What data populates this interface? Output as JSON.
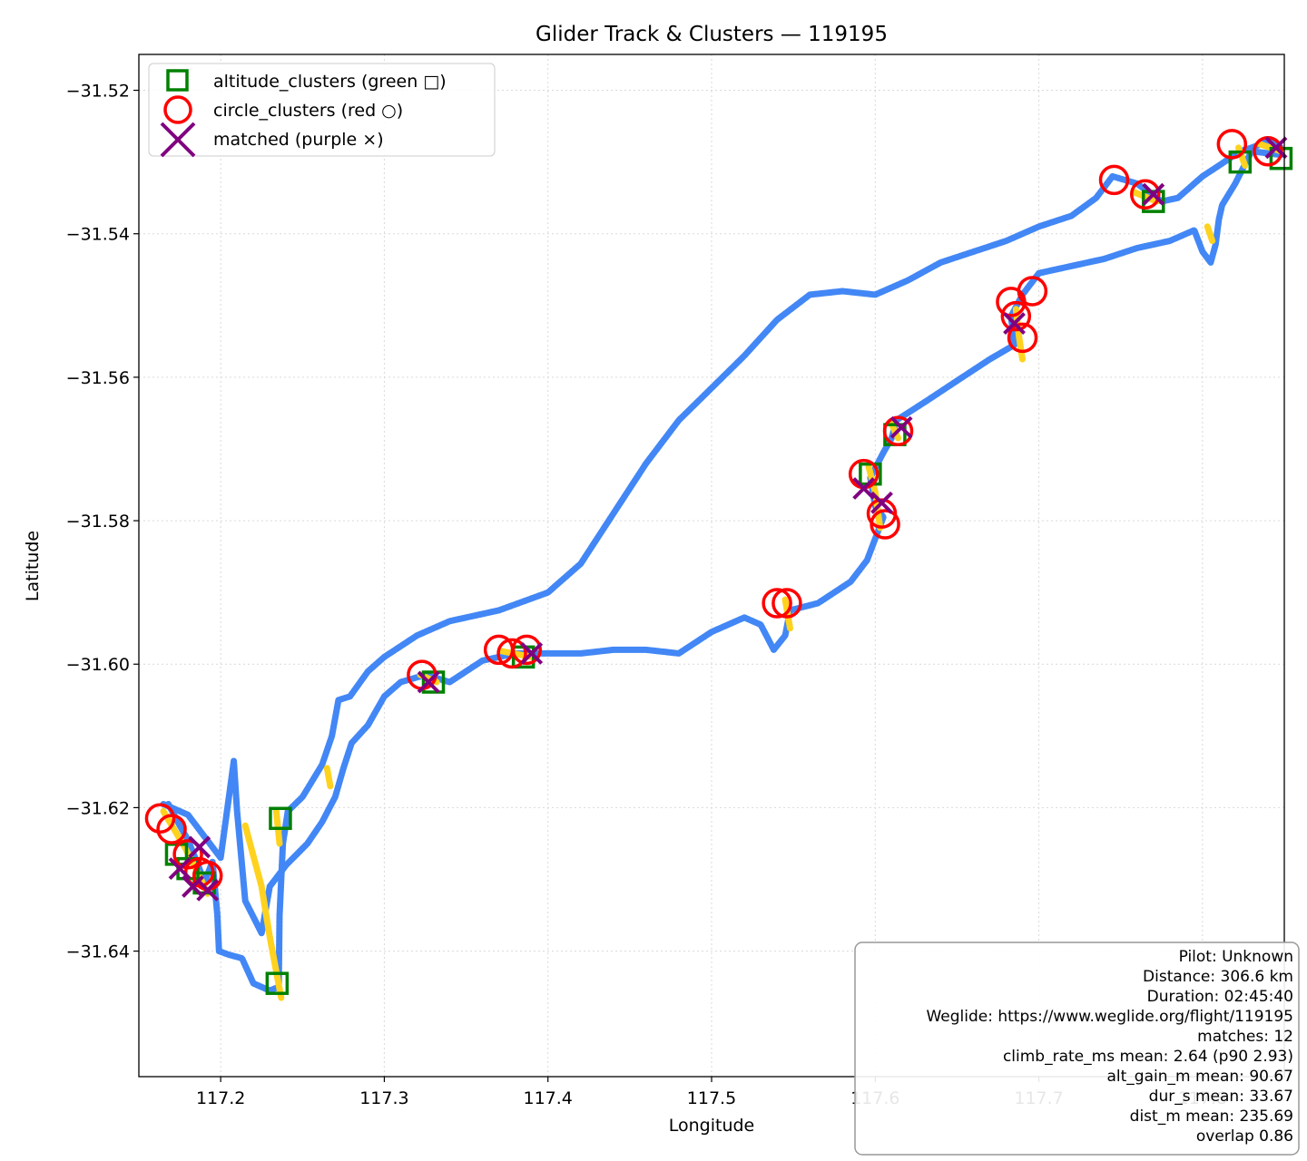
{
  "chart_data": {
    "type": "scatter",
    "title": "Glider Track & Clusters — 119195",
    "xlabel": "Longitude",
    "ylabel": "Latitude",
    "xlim": [
      117.15,
      117.85
    ],
    "ylim": [
      -31.6575,
      -31.515
    ],
    "x_ticks": [
      117.2,
      117.3,
      117.4,
      117.5,
      117.6,
      117.7,
      117.8
    ],
    "x_tick_labels": [
      "117.2",
      "117.3",
      "117.4",
      "117.5",
      "117.6",
      "117.7",
      "117.8"
    ],
    "y_ticks": [
      -31.52,
      -31.54,
      -31.56,
      -31.58,
      -31.6,
      -31.62,
      -31.64
    ],
    "y_tick_labels": [
      "−31.52",
      "−31.54",
      "−31.56",
      "−31.58",
      "−31.60",
      "−31.62",
      "−31.64"
    ],
    "grid": true,
    "legend_position": "top-left",
    "legend": [
      {
        "label": "altitude_clusters (green □)",
        "marker": "square",
        "color": "#008000"
      },
      {
        "label": "circle_clusters (red ○)",
        "marker": "circle",
        "color": "#ff0000"
      },
      {
        "label": "matched (purple ×)",
        "marker": "x",
        "color": "#800080"
      }
    ],
    "colors": {
      "track": "#4287f5",
      "climb": "#ffd21f",
      "altitude": "#008000",
      "circle": "#ff0000",
      "matched": "#800080"
    },
    "track": [
      [
        117.168,
        -31.6195
      ],
      [
        117.175,
        -31.6225
      ],
      [
        117.18,
        -31.6245
      ],
      [
        117.187,
        -31.6285
      ],
      [
        117.19,
        -31.6305
      ],
      [
        117.195,
        -31.6275
      ],
      [
        117.198,
        -31.635
      ],
      [
        117.199,
        -31.64
      ],
      [
        117.205,
        -31.6405
      ],
      [
        117.213,
        -31.641
      ],
      [
        117.22,
        -31.6445
      ],
      [
        117.23,
        -31.6455
      ],
      [
        117.2355,
        -31.645
      ],
      [
        117.236,
        -31.635
      ],
      [
        117.238,
        -31.625
      ],
      [
        117.241,
        -31.6205
      ],
      [
        117.25,
        -31.6185
      ],
      [
        117.262,
        -31.614
      ],
      [
        117.268,
        -31.61
      ],
      [
        117.272,
        -31.605
      ],
      [
        117.279,
        -31.6045
      ],
      [
        117.29,
        -31.601
      ],
      [
        117.3,
        -31.599
      ],
      [
        117.32,
        -31.596
      ],
      [
        117.34,
        -31.594
      ],
      [
        117.37,
        -31.5925
      ],
      [
        117.4,
        -31.59
      ],
      [
        117.42,
        -31.586
      ],
      [
        117.44,
        -31.579
      ],
      [
        117.46,
        -31.572
      ],
      [
        117.48,
        -31.566
      ],
      [
        117.5,
        -31.5615
      ],
      [
        117.52,
        -31.557
      ],
      [
        117.54,
        -31.552
      ],
      [
        117.56,
        -31.5485
      ],
      [
        117.58,
        -31.548
      ],
      [
        117.6,
        -31.5485
      ],
      [
        117.62,
        -31.5465
      ],
      [
        117.64,
        -31.544
      ],
      [
        117.66,
        -31.5425
      ],
      [
        117.68,
        -31.541
      ],
      [
        117.7,
        -31.539
      ],
      [
        117.72,
        -31.5375
      ],
      [
        117.735,
        -31.535
      ],
      [
        117.745,
        -31.532
      ],
      [
        117.76,
        -31.533
      ],
      [
        117.775,
        -31.5355
      ],
      [
        117.785,
        -31.535
      ],
      [
        117.8,
        -31.532
      ],
      [
        117.81,
        -31.5305
      ],
      [
        117.823,
        -31.5285
      ],
      [
        117.83,
        -31.528
      ],
      [
        117.842,
        -31.527
      ],
      [
        117.848,
        -31.528
      ]
    ],
    "return_track": [
      [
        117.848,
        -31.529
      ],
      [
        117.83,
        -31.5285
      ],
      [
        117.82,
        -31.533
      ],
      [
        117.812,
        -31.536
      ],
      [
        117.81,
        -31.538
      ],
      [
        117.808,
        -31.5415
      ],
      [
        117.805,
        -31.544
      ],
      [
        117.8,
        -31.5425
      ],
      [
        117.795,
        -31.5395
      ],
      [
        117.78,
        -31.541
      ],
      [
        117.76,
        -31.542
      ],
      [
        117.74,
        -31.5435
      ],
      [
        117.72,
        -31.5445
      ],
      [
        117.7,
        -31.5455
      ],
      [
        117.69,
        -31.5485
      ],
      [
        117.683,
        -31.5515
      ],
      [
        117.685,
        -31.5555
      ],
      [
        117.67,
        -31.5575
      ],
      [
        117.65,
        -31.5605
      ],
      [
        117.63,
        -31.5635
      ],
      [
        117.613,
        -31.566
      ],
      [
        117.61,
        -31.5685
      ],
      [
        117.605,
        -31.5705
      ],
      [
        117.597,
        -31.574
      ],
      [
        117.6,
        -31.578
      ],
      [
        117.605,
        -31.5795
      ],
      [
        117.595,
        -31.5855
      ],
      [
        117.585,
        -31.5885
      ],
      [
        117.565,
        -31.5915
      ],
      [
        117.548,
        -31.5925
      ],
      [
        117.545,
        -31.596
      ],
      [
        117.538,
        -31.598
      ],
      [
        117.53,
        -31.5945
      ],
      [
        117.52,
        -31.5935
      ],
      [
        117.5,
        -31.5955
      ],
      [
        117.48,
        -31.5985
      ],
      [
        117.46,
        -31.598
      ],
      [
        117.44,
        -31.598
      ],
      [
        117.42,
        -31.5985
      ],
      [
        117.395,
        -31.5985
      ],
      [
        117.38,
        -31.5985
      ],
      [
        117.36,
        -31.5995
      ],
      [
        117.34,
        -31.6025
      ],
      [
        117.325,
        -31.6015
      ],
      [
        117.31,
        -31.6025
      ],
      [
        117.3,
        -31.6045
      ],
      [
        117.29,
        -31.6085
      ],
      [
        117.28,
        -31.611
      ],
      [
        117.275,
        -31.6145
      ],
      [
        117.27,
        -31.6185
      ],
      [
        117.262,
        -31.622
      ],
      [
        117.253,
        -31.625
      ],
      [
        117.24,
        -31.628
      ],
      [
        117.23,
        -31.631
      ],
      [
        117.225,
        -31.6375
      ],
      [
        117.215,
        -31.633
      ],
      [
        117.21,
        -31.6205
      ],
      [
        117.208,
        -31.6135
      ],
      [
        117.2,
        -31.627
      ],
      [
        117.19,
        -31.624
      ],
      [
        117.18,
        -31.621
      ],
      [
        117.165,
        -31.6195
      ]
    ],
    "climb_segments": [
      [
        [
          117.215,
          -31.6225
        ],
        [
          117.225,
          -31.631
        ],
        [
          117.23,
          -31.638
        ],
        [
          117.237,
          -31.6465
        ]
      ],
      [
        [
          117.165,
          -31.6205
        ],
        [
          117.178,
          -31.6255
        ],
        [
          117.188,
          -31.63
        ],
        [
          117.192,
          -31.632
        ]
      ],
      [
        [
          117.596,
          -31.5725
        ],
        [
          117.6,
          -31.576
        ],
        [
          117.603,
          -31.581
        ]
      ],
      [
        [
          117.686,
          -31.5505
        ],
        [
          117.688,
          -31.5545
        ],
        [
          117.69,
          -31.5575
        ]
      ],
      [
        [
          117.322,
          -31.6015
        ],
        [
          117.332,
          -31.6025
        ]
      ],
      [
        [
          117.372,
          -31.5982
        ],
        [
          117.39,
          -31.599
        ]
      ],
      [
        [
          117.758,
          -31.5342
        ],
        [
          117.772,
          -31.5355
        ]
      ],
      [
        [
          117.822,
          -31.528
        ],
        [
          117.826,
          -31.5305
        ]
      ],
      [
        [
          117.835,
          -31.5275
        ],
        [
          117.848,
          -31.5285
        ]
      ],
      [
        [
          117.545,
          -31.591
        ],
        [
          117.548,
          -31.595
        ]
      ],
      [
        [
          117.61,
          -31.5665
        ],
        [
          117.614,
          -31.5685
        ]
      ],
      [
        [
          117.234,
          -31.6205
        ],
        [
          117.236,
          -31.625
        ]
      ],
      [
        [
          117.265,
          -31.6145
        ],
        [
          117.267,
          -31.617
        ]
      ],
      [
        [
          117.803,
          -31.539
        ],
        [
          117.806,
          -31.541
        ]
      ]
    ],
    "altitude_clusters": [
      [
        117.173,
        -31.6265
      ],
      [
        117.18,
        -31.6285
      ],
      [
        117.19,
        -31.6305
      ],
      [
        117.2365,
        -31.6215
      ],
      [
        117.2345,
        -31.6445
      ],
      [
        117.33,
        -31.6025
      ],
      [
        117.385,
        -31.599
      ],
      [
        117.612,
        -31.568
      ],
      [
        117.597,
        -31.5735
      ],
      [
        117.77,
        -31.5355
      ],
      [
        117.823,
        -31.53
      ],
      [
        117.848,
        -31.5295
      ]
    ],
    "circle_clusters": [
      [
        117.163,
        -31.6215
      ],
      [
        117.17,
        -31.623
      ],
      [
        117.18,
        -31.6265
      ],
      [
        117.187,
        -31.629
      ],
      [
        117.192,
        -31.6295
      ],
      [
        117.323,
        -31.6015
      ],
      [
        117.37,
        -31.598
      ],
      [
        117.378,
        -31.5985
      ],
      [
        117.387,
        -31.598
      ],
      [
        117.54,
        -31.5915
      ],
      [
        117.546,
        -31.5915
      ],
      [
        117.593,
        -31.5735
      ],
      [
        117.604,
        -31.579
      ],
      [
        117.606,
        -31.5805
      ],
      [
        117.614,
        -31.5675
      ],
      [
        117.683,
        -31.5495
      ],
      [
        117.686,
        -31.5515
      ],
      [
        117.69,
        -31.5545
      ],
      [
        117.696,
        -31.548
      ],
      [
        117.746,
        -31.5325
      ],
      [
        117.765,
        -31.5345
      ],
      [
        117.818,
        -31.5275
      ],
      [
        117.84,
        -31.5285
      ]
    ],
    "matched": [
      [
        117.175,
        -31.6285
      ],
      [
        117.183,
        -31.631
      ],
      [
        117.187,
        -31.6255
      ],
      [
        117.192,
        -31.6315
      ],
      [
        117.327,
        -31.6025
      ],
      [
        117.39,
        -31.5985
      ],
      [
        117.593,
        -31.5755
      ],
      [
        117.604,
        -31.5775
      ],
      [
        117.616,
        -31.567
      ],
      [
        117.685,
        -31.5525
      ],
      [
        117.77,
        -31.5345
      ],
      [
        117.845,
        -31.528
      ]
    ]
  },
  "info_box": {
    "lines": [
      "Pilot: Unknown",
      "Distance: 306.6 km",
      "Duration: 02:45:40",
      "Weglide: https://www.weglide.org/flight/119195",
      "matches: 12",
      "climb_rate_ms mean: 2.64 (p90 2.93)",
      "alt_gain_m mean: 90.67",
      "dur_s mean: 33.67",
      "dist_m mean: 235.69",
      "overlap 0.86"
    ]
  }
}
